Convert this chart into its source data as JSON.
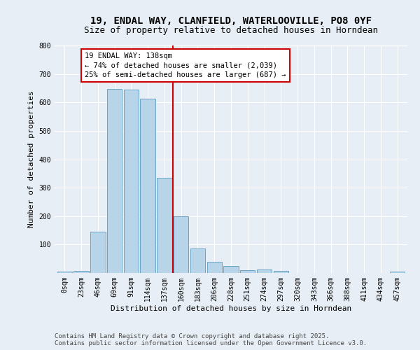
{
  "title_line1": "19, ENDAL WAY, CLANFIELD, WATERLOOVILLE, PO8 0YF",
  "title_line2": "Size of property relative to detached houses in Horndean",
  "xlabel": "Distribution of detached houses by size in Horndean",
  "ylabel": "Number of detached properties",
  "bar_color": "#b8d4e8",
  "bar_edge_color": "#5a9abd",
  "background_color": "#e8eef5",
  "grid_color": "#ffffff",
  "categories": [
    "0sqm",
    "23sqm",
    "46sqm",
    "69sqm",
    "91sqm",
    "114sqm",
    "137sqm",
    "160sqm",
    "183sqm",
    "206sqm",
    "228sqm",
    "251sqm",
    "274sqm",
    "297sqm",
    "320sqm",
    "343sqm",
    "366sqm",
    "388sqm",
    "411sqm",
    "434sqm",
    "457sqm"
  ],
  "bar_heights": [
    5,
    8,
    145,
    648,
    645,
    612,
    335,
    200,
    85,
    40,
    25,
    10,
    12,
    8,
    0,
    0,
    0,
    0,
    0,
    0,
    5
  ],
  "red_line_x": 6.5,
  "annotation_text": "19 ENDAL WAY: 138sqm\n← 74% of detached houses are smaller (2,039)\n25% of semi-detached houses are larger (687) →",
  "annotation_box_color": "#ffffff",
  "annotation_border_color": "#cc0000",
  "red_line_color": "#cc0000",
  "ylim": [
    0,
    800
  ],
  "yticks": [
    0,
    100,
    200,
    300,
    400,
    500,
    600,
    700,
    800
  ],
  "footer_line1": "Contains HM Land Registry data © Crown copyright and database right 2025.",
  "footer_line2": "Contains public sector information licensed under the Open Government Licence v3.0.",
  "title_fontsize": 10,
  "subtitle_fontsize": 9,
  "axis_label_fontsize": 8,
  "tick_fontsize": 7,
  "annotation_fontsize": 7.5,
  "footer_fontsize": 6.5
}
